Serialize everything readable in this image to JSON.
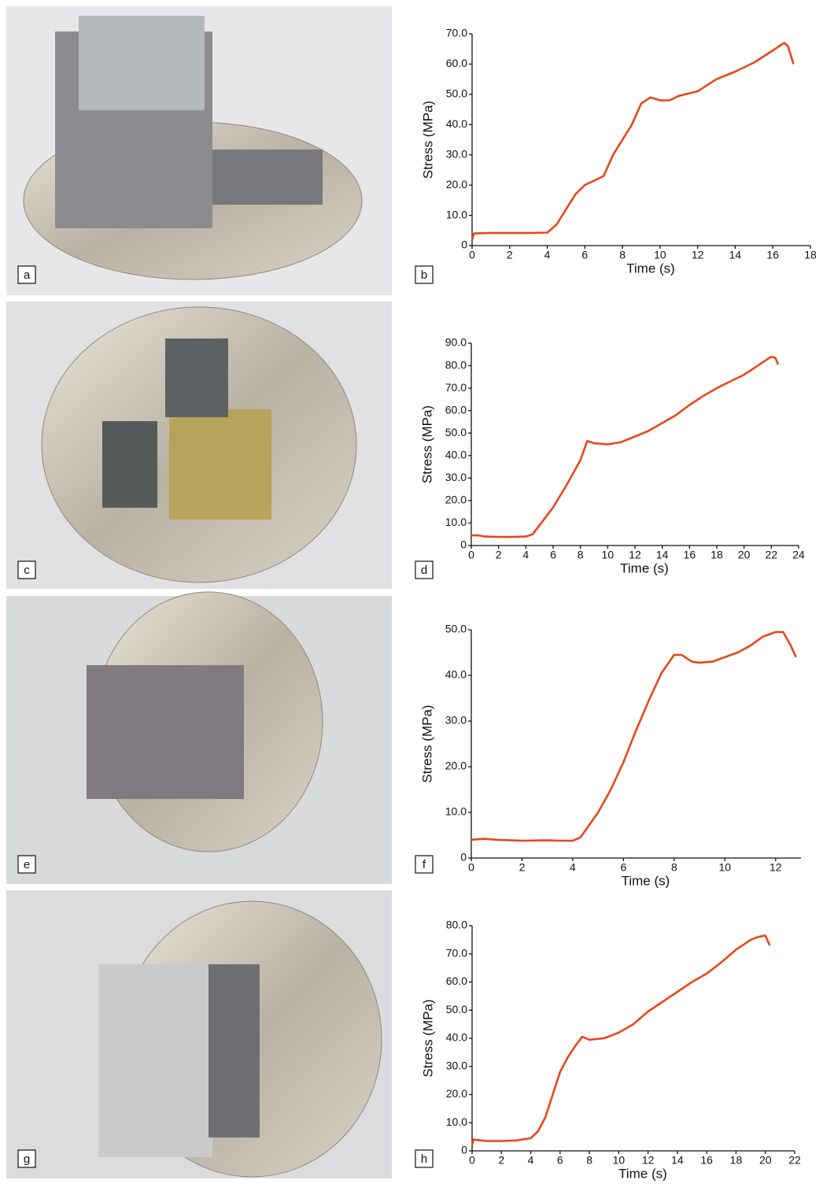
{
  "photos": [
    {
      "label": "a"
    },
    {
      "label": "c"
    },
    {
      "label": "e"
    },
    {
      "label": "g"
    }
  ],
  "chart_data": [
    {
      "type": "line",
      "panel_label": "b",
      "xlabel": "Time (s)",
      "ylabel": "Stress (MPa)",
      "color": "#e8471c",
      "x": [
        0,
        0.1,
        1,
        2,
        3,
        4,
        4.5,
        5,
        5.5,
        6,
        6.5,
        7,
        7.5,
        8,
        8.5,
        9,
        9.5,
        10,
        10.5,
        11,
        12,
        12.5,
        13,
        14,
        15,
        16,
        16.6,
        16.8,
        17.1
      ],
      "values": [
        2,
        4,
        4.2,
        4.2,
        4.2,
        4.3,
        7,
        12,
        17,
        20,
        21.5,
        23,
        30,
        35,
        40,
        47,
        49,
        48,
        48,
        49.5,
        51,
        53,
        55,
        57.5,
        60.5,
        64.5,
        67,
        66,
        60
      ],
      "xlim": [
        0,
        18
      ],
      "ylim": [
        0,
        70
      ],
      "xticks": [
        0,
        2,
        4,
        6,
        8,
        10,
        12,
        14,
        16,
        18
      ],
      "yticks": [
        0,
        {
          "value": 10,
          "label": "10.0"
        },
        {
          "value": 20,
          "label": "20.0"
        },
        {
          "value": 30,
          "label": "30.0"
        },
        {
          "value": 40,
          "label": "40.0"
        },
        {
          "value": 50,
          "label": "50.0"
        },
        {
          "value": 60,
          "label": "60.0"
        },
        {
          "value": 70,
          "label": "70.0"
        }
      ]
    },
    {
      "type": "line",
      "panel_label": "d",
      "xlabel": "Time (s)",
      "ylabel": "Stress (MPa)",
      "color": "#e8471c",
      "x": [
        0,
        0.5,
        1,
        2,
        3,
        4,
        4.5,
        5,
        6,
        7,
        8,
        8.5,
        9,
        10,
        11,
        12,
        13,
        14,
        15,
        16,
        17,
        18,
        19,
        20,
        21,
        22,
        22.3,
        22.5
      ],
      "values": [
        4.5,
        4.5,
        4,
        3.8,
        3.8,
        4,
        5,
        9,
        17,
        27,
        38,
        46.5,
        45.5,
        45,
        46,
        48.5,
        51,
        54.5,
        58,
        62.5,
        66.5,
        70,
        73,
        76,
        80,
        84,
        83.5,
        80.5
      ],
      "xlim": [
        0,
        24
      ],
      "ylim": [
        0,
        90
      ],
      "xticks": [
        0,
        2,
        4,
        6,
        8,
        10,
        12,
        14,
        16,
        18,
        20,
        22,
        24
      ],
      "yticks": [
        0,
        {
          "value": 10,
          "label": "10.0"
        },
        {
          "value": 20,
          "label": "20.0"
        },
        {
          "value": 30,
          "label": "30.0"
        },
        {
          "value": 40,
          "label": "40.0"
        },
        {
          "value": 50,
          "label": "50.0"
        },
        {
          "value": 60,
          "label": "60.0"
        },
        {
          "value": 70,
          "label": "70.0"
        },
        {
          "value": 80,
          "label": "80.0"
        },
        {
          "value": 90,
          "label": "90.0"
        }
      ]
    },
    {
      "type": "line",
      "panel_label": "f",
      "xlabel": "Time (s)",
      "ylabel": "Stress (MPa)",
      "color": "#e8471c",
      "x": [
        0,
        0.5,
        1,
        2,
        3,
        3.5,
        4,
        4.3,
        5,
        5.5,
        6,
        6.5,
        7,
        7.5,
        8,
        8.3,
        8.7,
        9,
        9.5,
        10,
        10.5,
        11,
        11.5,
        12,
        12.3,
        12.6,
        12.8
      ],
      "values": [
        4,
        4.2,
        4,
        3.8,
        3.9,
        3.8,
        3.8,
        4.5,
        10,
        15,
        21,
        28,
        34.5,
        40.5,
        44.5,
        44.5,
        43,
        42.8,
        43,
        44,
        45,
        46.5,
        48.5,
        49.5,
        49.5,
        46.5,
        44
      ],
      "xlim": [
        0,
        13
      ],
      "ylim": [
        0,
        50
      ],
      "xticks": [
        0,
        2,
        4,
        6,
        8,
        10,
        12
      ],
      "yticks": [
        0,
        {
          "value": 10,
          "label": "10.0"
        },
        {
          "value": 20,
          "label": "20.0"
        },
        {
          "value": 30,
          "label": "30.0"
        },
        {
          "value": 40,
          "label": "40.0"
        },
        {
          "value": 50,
          "label": "50.0"
        }
      ]
    },
    {
      "type": "line",
      "panel_label": "h",
      "xlabel": "Time (s)",
      "ylabel": "Stress (MPa)",
      "color": "#e8471c",
      "x": [
        0,
        0.1,
        1,
        2,
        3,
        4,
        4.5,
        5,
        5.5,
        6,
        6.5,
        7,
        7.5,
        8,
        9,
        10,
        11,
        12,
        13,
        14,
        15,
        16,
        17,
        18,
        19,
        19.5,
        20,
        20.3
      ],
      "values": [
        2,
        4,
        3.5,
        3.5,
        3.7,
        4.5,
        7,
        12,
        20,
        28,
        33,
        37,
        40.5,
        39.5,
        40,
        42,
        45,
        49.5,
        53,
        56.5,
        60,
        63,
        67,
        71.5,
        75,
        76,
        76.5,
        73
      ],
      "xlim": [
        0,
        22
      ],
      "ylim": [
        0,
        80
      ],
      "xticks": [
        0,
        2,
        4,
        6,
        8,
        10,
        12,
        14,
        16,
        18,
        20,
        22
      ],
      "yticks": [
        0,
        {
          "value": 10,
          "label": "10.0"
        },
        {
          "value": 20,
          "label": "20.0"
        },
        {
          "value": 30,
          "label": "30.0"
        },
        {
          "value": 40,
          "label": "40.0"
        },
        {
          "value": 50,
          "label": "50.0"
        },
        {
          "value": 60,
          "label": "60.0"
        },
        {
          "value": 70,
          "label": "70.0"
        },
        {
          "value": 80,
          "label": "80.0"
        }
      ]
    }
  ]
}
